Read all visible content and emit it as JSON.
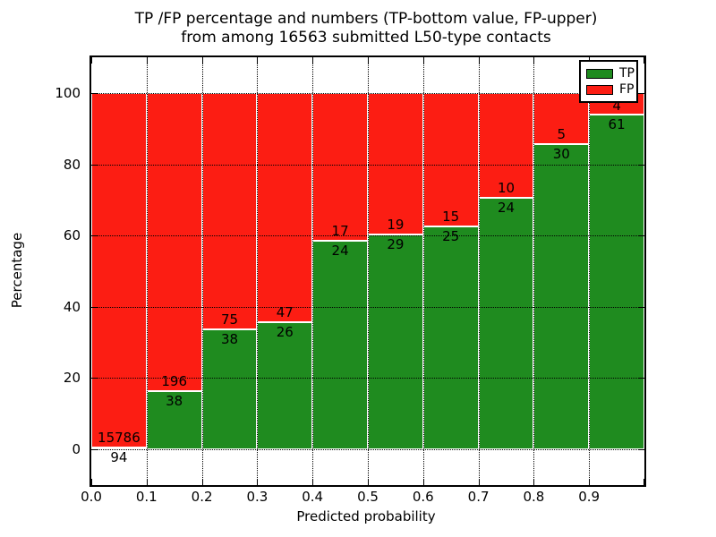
{
  "figure": {
    "title_line1": "TP /FP percentage and numbers (TP-bottom value, FP-upper)",
    "title_line2": "from among 16563 submitted L50-type contacts",
    "xlabel": "Predicted probability",
    "ylabel": "Percentage"
  },
  "legend": {
    "items": [
      {
        "label": "TP",
        "color": "#1f8b1f"
      },
      {
        "label": "FP",
        "color": "#fc1d13"
      }
    ]
  },
  "chart_data": {
    "type": "bar",
    "stacked": true,
    "title": "TP /FP percentage and numbers (TP-bottom value, FP-upper) from among 16563 submitted L50-type contacts",
    "xlabel": "Predicted probability",
    "ylabel": "Percentage",
    "x_tick_labels": [
      "0.0",
      "0.1",
      "0.2",
      "0.3",
      "0.4",
      "0.5",
      "0.6",
      "0.7",
      "0.8",
      "0.9"
    ],
    "y_ticks": [
      0,
      20,
      40,
      60,
      80,
      100
    ],
    "xlim": [
      0.0,
      1.0
    ],
    "ylim": [
      -10,
      110
    ],
    "grid": true,
    "legend_position": "upper right",
    "colors": {
      "tp": "#1f8b1f",
      "fp": "#fc1d13"
    },
    "total_contacts": 16563,
    "series_note": "Each 0.1-wide probability bin stacked to 100%; TP count shown below boundary, FP count above",
    "bins": [
      {
        "range": "0.0-0.1",
        "tp": 94,
        "fp": 15786
      },
      {
        "range": "0.1-0.2",
        "tp": 38,
        "fp": 196
      },
      {
        "range": "0.2-0.3",
        "tp": 38,
        "fp": 75
      },
      {
        "range": "0.3-0.4",
        "tp": 26,
        "fp": 47
      },
      {
        "range": "0.4-0.5",
        "tp": 24,
        "fp": 17
      },
      {
        "range": "0.5-0.6",
        "tp": 29,
        "fp": 19
      },
      {
        "range": "0.6-0.7",
        "tp": 25,
        "fp": 15
      },
      {
        "range": "0.7-0.8",
        "tp": 24,
        "fp": 10
      },
      {
        "range": "0.8-0.9",
        "tp": 30,
        "fp": 5
      },
      {
        "range": "0.9-1.0",
        "tp": 61,
        "fp": 4
      }
    ]
  }
}
